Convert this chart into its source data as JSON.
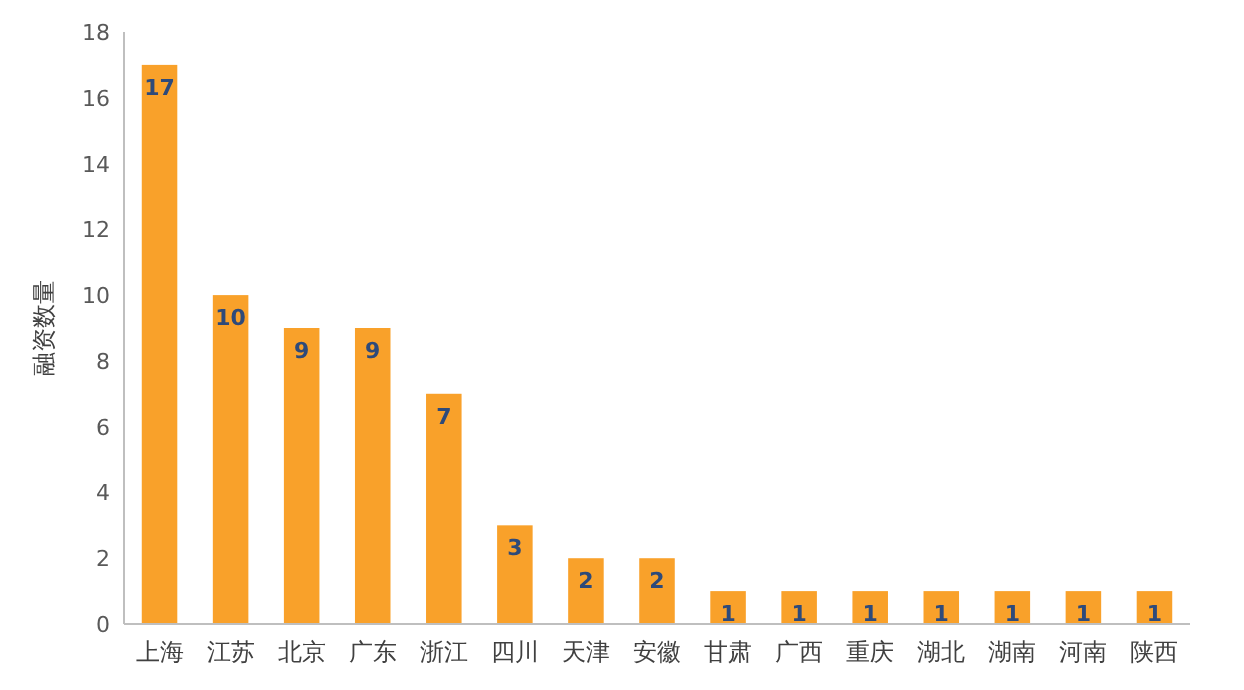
{
  "chart_data": {
    "type": "bar",
    "ylabel": "融资数量",
    "categories": [
      "上海",
      "江苏",
      "北京",
      "广东",
      "浙江",
      "四川",
      "天津",
      "安徽",
      "甘肃",
      "广西",
      "重庆",
      "湖北",
      "湖南",
      "河南",
      "陕西"
    ],
    "values": [
      17,
      10,
      9,
      9,
      7,
      3,
      2,
      2,
      1,
      1,
      1,
      1,
      1,
      1,
      1
    ],
    "color": "#f9a12a",
    "ylim": [
      0,
      18
    ],
    "yticks": [
      0,
      2,
      4,
      6,
      8,
      10,
      12,
      14,
      16,
      18
    ],
    "data_labels": true
  }
}
